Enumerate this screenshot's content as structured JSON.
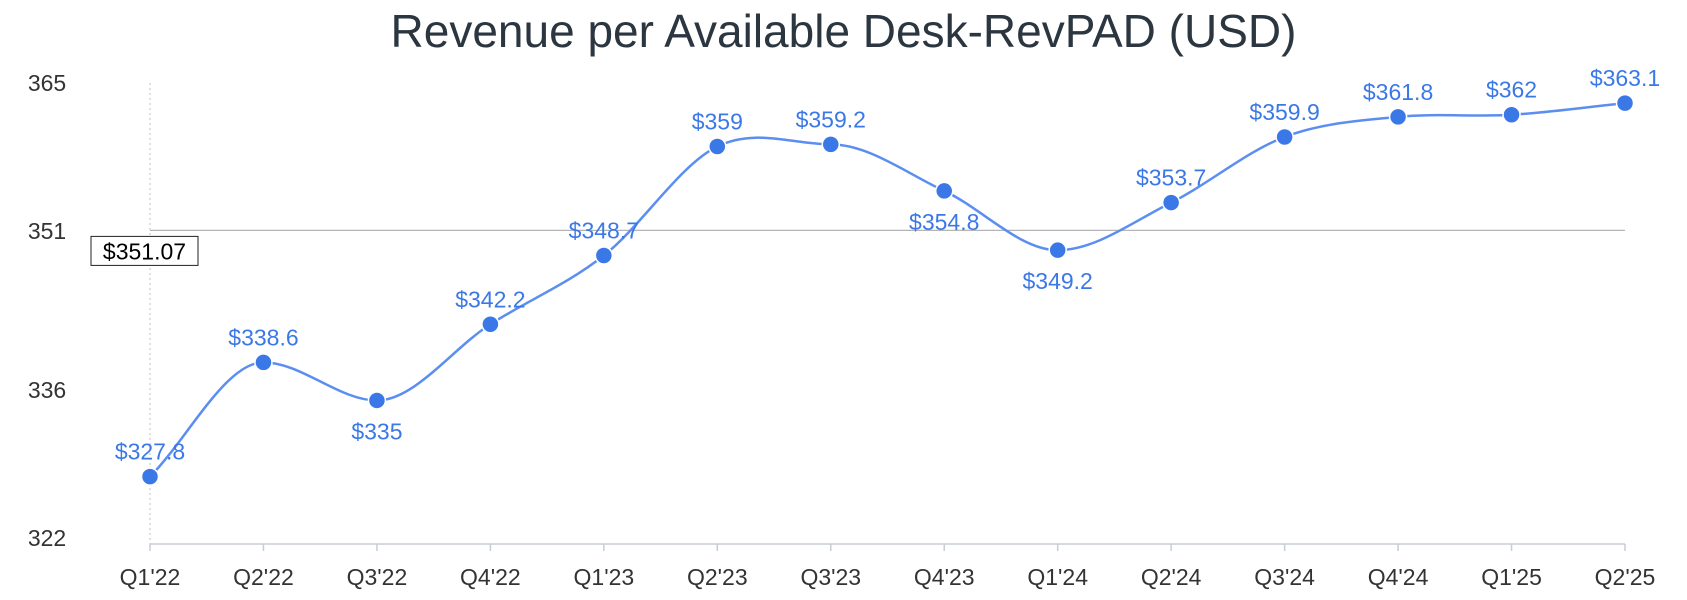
{
  "chart_data": {
    "type": "line",
    "title": "Revenue per Available Desk-RevPAD (USD)",
    "xlabel": "",
    "ylabel": "",
    "categories": [
      "Q1'22",
      "Q2'22",
      "Q3'22",
      "Q4'22",
      "Q1'23",
      "Q2'23",
      "Q3'23",
      "Q4'23",
      "Q1'24",
      "Q2'24",
      "Q3'24",
      "Q4'24",
      "Q1'25",
      "Q2'25"
    ],
    "series": [
      {
        "values": [
          327.8,
          338.6,
          335,
          342.2,
          348.7,
          359,
          359.2,
          354.8,
          349.2,
          353.7,
          359.9,
          361.8,
          362,
          363.1
        ],
        "labels": [
          "$327.8",
          "$338.6",
          "$335",
          "$342.2",
          "$348.7",
          "$359",
          "$359.2",
          "$354.8",
          "$349.2",
          "$353.7",
          "$359.9",
          "$361.8",
          "$362",
          "$363.1"
        ],
        "label_position": [
          "above",
          "above",
          "below",
          "above",
          "above",
          "above",
          "above",
          "below",
          "below",
          "above",
          "above",
          "above",
          "above",
          "above"
        ]
      }
    ],
    "y_ticks": [
      "365",
      "351",
      "336",
      "322"
    ],
    "ylim": [
      322,
      365
    ],
    "reference_line": {
      "value": 351.07,
      "label": "$351.07"
    },
    "smooth": true,
    "grid": false,
    "colors": {
      "series": "#3b78e7",
      "line": "#5b8ef0",
      "axis": "#c8cdd3",
      "reference": "#b5b5b5"
    }
  }
}
